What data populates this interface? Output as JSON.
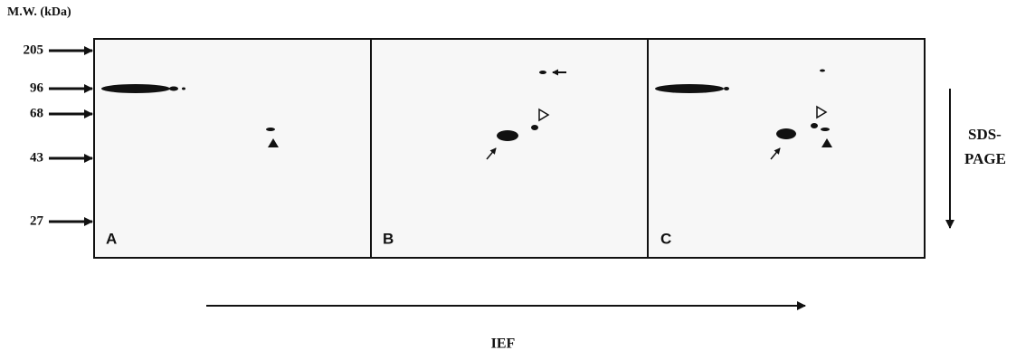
{
  "axis_label": "M.W. (kDa)",
  "markers": [
    "205",
    "96",
    "68",
    "43",
    "27"
  ],
  "panels": [
    "A",
    "B",
    "C"
  ],
  "vertical_axis_label": [
    "SDS-",
    "PAGE"
  ],
  "horizontal_axis_label": "IEF"
}
